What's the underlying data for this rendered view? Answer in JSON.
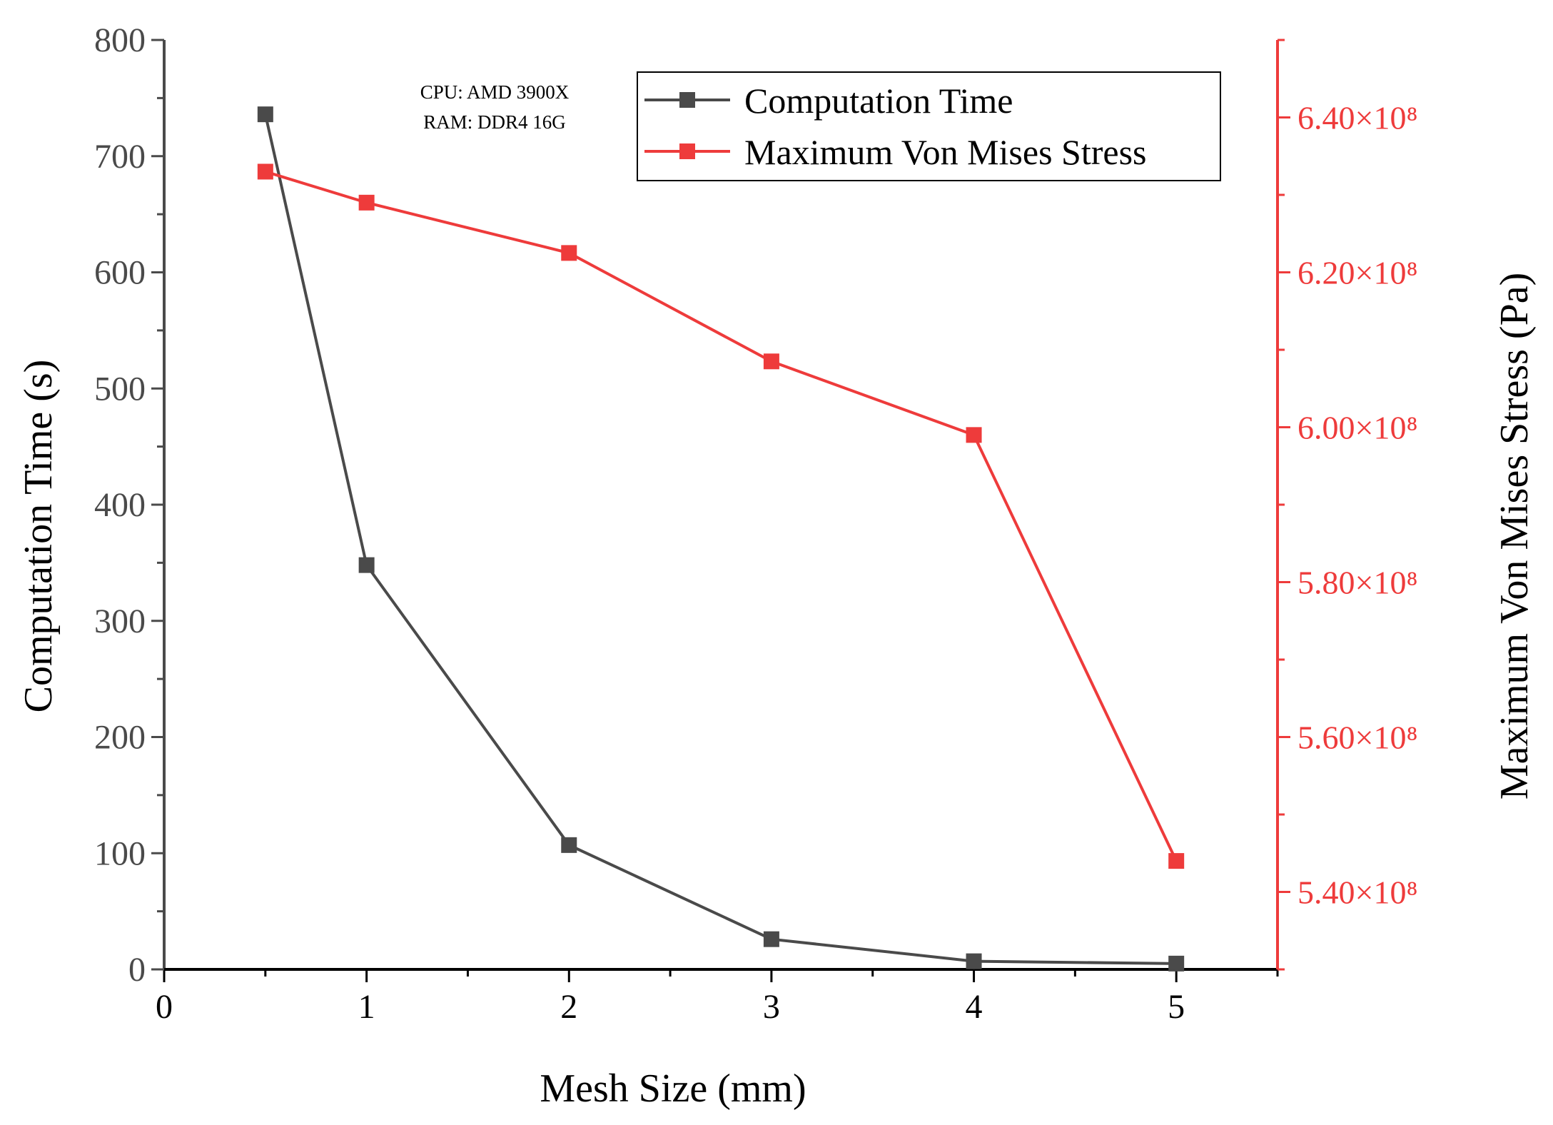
{
  "chart_data": {
    "type": "line",
    "title": "",
    "xlabel": "Mesh Size (mm)",
    "ylabel_left": "Computation Time (s)",
    "ylabel_right": "Maximum Von Mises Stress (Pa)",
    "xlim": [
      0,
      5.5
    ],
    "ylim_left": [
      0,
      800
    ],
    "ylim_right": [
      530000000,
      650000000
    ],
    "x_ticks": [
      "0",
      "1",
      "2",
      "3",
      "4",
      "5"
    ],
    "y_left_ticks": [
      "0",
      "100",
      "200",
      "300",
      "400",
      "500",
      "600",
      "700",
      "800"
    ],
    "y_right_ticks": [
      {
        "value": 540000000,
        "label": "5.40×10⁸"
      },
      {
        "value": 560000000,
        "label": "5.60×10⁸"
      },
      {
        "value": 580000000,
        "label": "5.80×10⁸"
      },
      {
        "value": 600000000,
        "label": "6.00×10⁸"
      },
      {
        "value": 620000000,
        "label": "6.20×10⁸"
      },
      {
        "value": 640000000,
        "label": "6.40×10⁸"
      }
    ],
    "x": [
      0.5,
      1,
      2,
      3,
      4,
      5
    ],
    "series": [
      {
        "name": "Computation Time",
        "axis": "left",
        "color": "#4a4a4a",
        "values": [
          736,
          348,
          107,
          26,
          7,
          5
        ]
      },
      {
        "name": "Maximum Von Mises Stress",
        "axis": "right",
        "color": "#ee3b3b",
        "values": [
          633000000,
          629000000,
          622500000,
          608500000,
          599000000,
          544000000
        ]
      }
    ],
    "annotations": [
      "CPU: AMD 3900X",
      "RAM: DDR4 16G"
    ],
    "legend_position": "top-right",
    "grid": false
  }
}
